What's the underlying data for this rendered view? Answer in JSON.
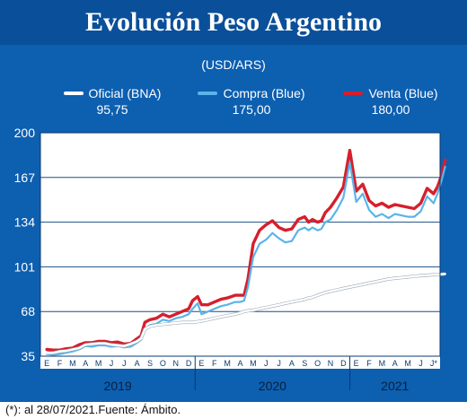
{
  "title": "Evolución Peso Argentino",
  "footnote": "(*): al 28/07/2021.Fuente: Ámbito.",
  "colors": {
    "frame": "#0d5fb0",
    "oficial": "#ffffff",
    "compra": "#5ab4ea",
    "venta": "#d61f2c"
  },
  "chart_data": {
    "type": "line",
    "subtitle": "(USD/ARS)",
    "ylim": [
      35,
      200
    ],
    "yticks": [
      35,
      68,
      101,
      134,
      167,
      200
    ],
    "month_labels": [
      "E",
      "F",
      "M",
      "A",
      "M",
      "J",
      "J",
      "A",
      "S",
      "O",
      "N",
      "D",
      "E",
      "F",
      "M",
      "A",
      "M",
      "J",
      "J",
      "A",
      "S",
      "O",
      "N",
      "D",
      "E",
      "F",
      "M",
      "A",
      "M",
      "J",
      "J*"
    ],
    "year_labels": [
      "2019",
      "2020",
      "2021"
    ],
    "legend": [
      {
        "name": "Oficial (BNA)",
        "value": "95,75"
      },
      {
        "name": "Compra (Blue)",
        "value": "175,00"
      },
      {
        "name": "Venta (Blue)",
        "value": "180,00"
      }
    ],
    "x_month_index": [
      0,
      0.5,
      1,
      1.5,
      2,
      2.5,
      3,
      3.5,
      4,
      4.5,
      5,
      5.5,
      6,
      6.5,
      7,
      7.3,
      7.6,
      8,
      8.5,
      9,
      9.5,
      10,
      10.5,
      11,
      11.3,
      11.7,
      12,
      12.5,
      13,
      13.5,
      14,
      14.3,
      14.6,
      15,
      15.3,
      15.6,
      16,
      16.5,
      17,
      17.5,
      18,
      18.5,
      19,
      19.5,
      20,
      20.3,
      20.6,
      21,
      21.3,
      21.6,
      22,
      22.5,
      23,
      23.5,
      24,
      24.5,
      25,
      25.5,
      26,
      26.5,
      27,
      27.5,
      28,
      28.5,
      29,
      29.5,
      30,
      30.3,
      30.6,
      30.9
    ],
    "series": [
      {
        "name": "Oficial (BNA)",
        "values": [
          37.4,
          37.5,
          38.5,
          39,
          40,
          41,
          43.5,
          44,
          44.5,
          44.5,
          43.5,
          43,
          42.5,
          44,
          46,
          48,
          55,
          57,
          58,
          58.5,
          59,
          59.5,
          60,
          60,
          60,
          60.5,
          61,
          62,
          63,
          64,
          65,
          65.5,
          66,
          67,
          68,
          68.5,
          69,
          70,
          71,
          72,
          73,
          74,
          75,
          76,
          77,
          78,
          78.5,
          80,
          81,
          82,
          83,
          84,
          85,
          86,
          87,
          88,
          89,
          90,
          91,
          92,
          92.5,
          93,
          93.5,
          94,
          94.5,
          94.8,
          95.2,
          95.3,
          95.5,
          95.75
        ]
      },
      {
        "name": "Compra (Blue)",
        "values": [
          36.5,
          36,
          36.5,
          37.5,
          38.5,
          40,
          42.5,
          42,
          43,
          43,
          42,
          42.5,
          41.5,
          42,
          45,
          47,
          55,
          58,
          59,
          62,
          61,
          63,
          64,
          66,
          70,
          74,
          66,
          68,
          70,
          72,
          73,
          74,
          75,
          75,
          76,
          86,
          108,
          118,
          121,
          126,
          122,
          119,
          120,
          128,
          130,
          128,
          130,
          128,
          129,
          134,
          136,
          143,
          152,
          178,
          149,
          155,
          143,
          138,
          140,
          137,
          140,
          139,
          138,
          138,
          142,
          153,
          148,
          155,
          164,
          175
        ]
      },
      {
        "name": "Venta (Blue)",
        "values": [
          40,
          39.5,
          39.5,
          40.5,
          41,
          43.5,
          45,
          45,
          46,
          46,
          45,
          45.5,
          44,
          44.5,
          48,
          50,
          60,
          62,
          63,
          66,
          64,
          66,
          68,
          70,
          76,
          79,
          73,
          73,
          75,
          77,
          78,
          79,
          80,
          80,
          80,
          92,
          118,
          128,
          132,
          135,
          130,
          128,
          129,
          136,
          138,
          134,
          136,
          134,
          135,
          141,
          145,
          152,
          160,
          187,
          157,
          162,
          150,
          146,
          148,
          145,
          147,
          146,
          145,
          144,
          148,
          159,
          155,
          160,
          168,
          180
        ]
      }
    ]
  }
}
